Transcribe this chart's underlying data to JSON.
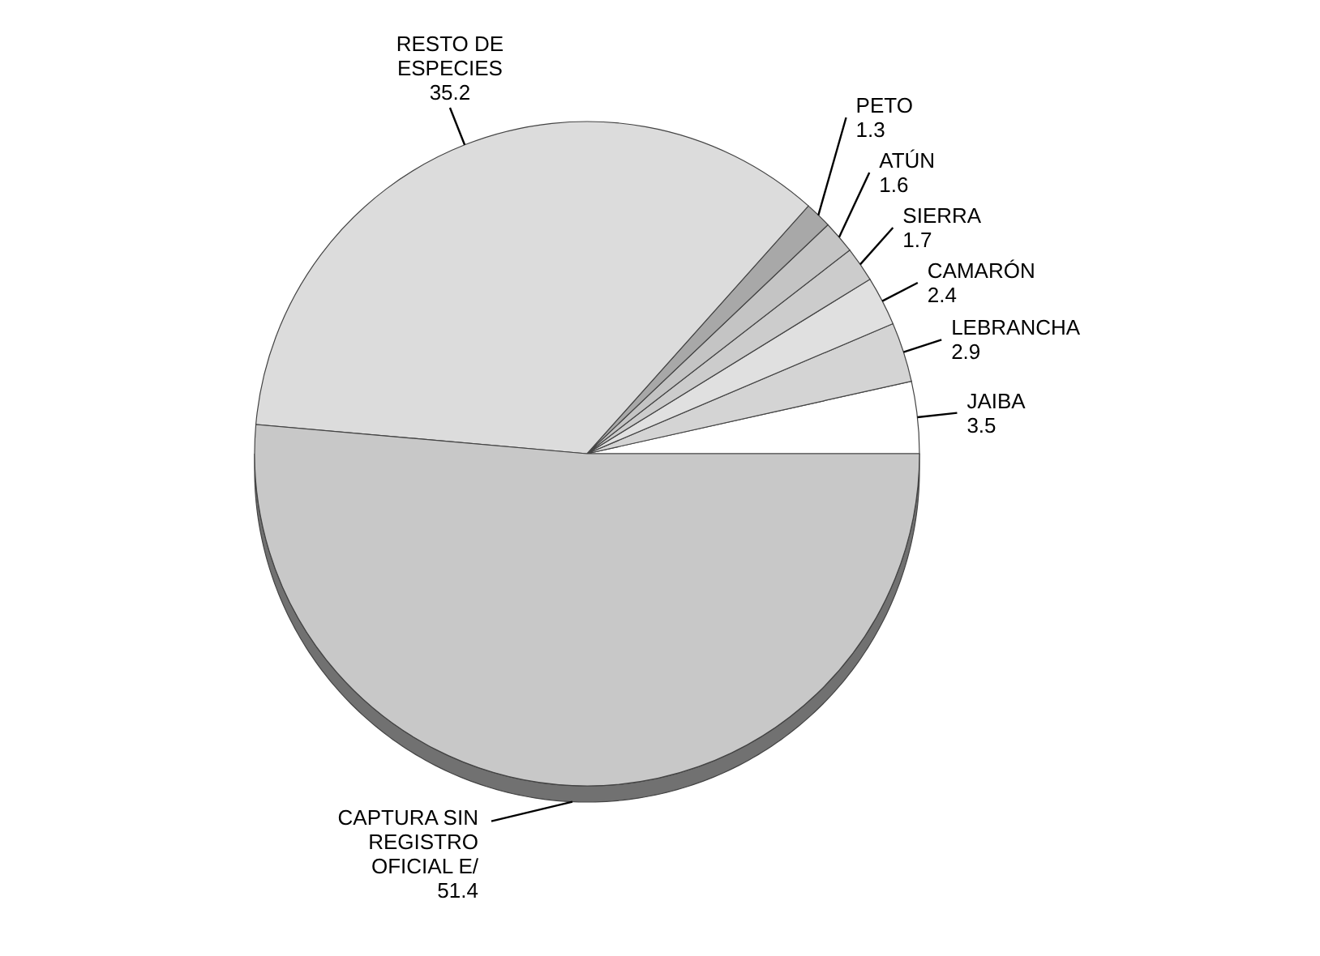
{
  "chart_data": {
    "type": "pie",
    "categories": [
      "JAIBA",
      "LEBRANCHA",
      "CAMARÓN",
      "SIERRA",
      "ATÚN",
      "PETO",
      "RESTO DE ESPECIES",
      "CAPTURA SIN REGISTRO OFICIAL E/"
    ],
    "values": [
      3.5,
      2.9,
      2.4,
      1.7,
      1.6,
      1.3,
      35.2,
      51.4
    ],
    "colors": [
      "#ffffff",
      "#d4d4d4",
      "#e0e0e0",
      "#cccccc",
      "#c4c4c4",
      "#a8a8a8",
      "#dcdcdc",
      "#c8c8c8"
    ],
    "data_labels": true
  }
}
